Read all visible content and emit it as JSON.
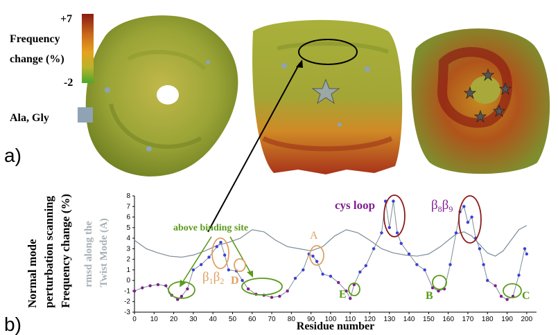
{
  "panel_a": {
    "label": "a)",
    "colorbar": {
      "max_label": "+7",
      "min_label": "-2",
      "title_line1": "Frequency",
      "title_line2": "change (%)",
      "gradient": [
        "#8b1a12",
        "#c96a1a",
        "#e6a21f",
        "#b9b22a",
        "#4aa82a"
      ],
      "ala_gly_label": "Ala, Gly",
      "ala_gly_color": "#8fa3b5"
    }
  },
  "panel_b": {
    "label": "b)",
    "ylabel_line1": "Normal mode",
    "ylabel_line2": "perturbation scanning",
    "ylabel_line3": "Frequency change (%)",
    "y2label_line1": "rmsd along the",
    "y2label_line2": "Twist Mode (A)",
    "annotations": {
      "above_binding_site": "above binding site",
      "cys_loop": "cys loop",
      "b8b9_b": "β",
      "b8b9_s1": "8",
      "b8b9_s2": "9",
      "b1b2_b": "β",
      "b1b2_s1": "1",
      "b1b2_s2": "2",
      "A": "A",
      "B": "B",
      "C": "C",
      "D": "D",
      "E": "E"
    },
    "colors": {
      "blue": "#3b3fd6",
      "purple": "#7f1f8f",
      "gray": "#7b8c97",
      "green": "#5a9a1a",
      "orange": "#e0a060",
      "maroon": "#8b1a1a"
    }
  },
  "chart_data": {
    "type": "line",
    "xlabel": "Residue number",
    "ylabel": "Normal mode perturbation scanning Frequency change (%)",
    "y2label": "rmsd along the Twist Mode (A)",
    "xlim": [
      0,
      205
    ],
    "ylim": [
      -3,
      8
    ],
    "xticks": [
      0,
      10,
      20,
      30,
      40,
      50,
      60,
      70,
      80,
      90,
      100,
      110,
      120,
      130,
      140,
      150,
      160,
      170,
      180,
      190,
      200
    ],
    "yticks": [
      -3,
      -2,
      -1,
      0,
      1,
      2,
      3,
      4,
      5,
      6,
      7,
      8
    ],
    "series": [
      {
        "name": "Frequency change",
        "x": [
          0,
          4,
          8,
          12,
          16,
          19,
          22,
          24,
          27,
          30,
          34,
          38,
          42,
          44,
          46,
          48,
          52,
          55,
          58,
          62,
          66,
          70,
          74,
          78,
          82,
          86,
          89,
          91,
          93,
          96,
          100,
          104,
          108,
          110,
          112,
          115,
          118,
          122,
          126,
          128,
          130,
          132,
          134,
          136,
          140,
          144,
          148,
          152,
          155,
          158,
          161,
          164,
          166,
          168,
          170,
          172,
          174,
          176,
          178,
          180,
          184,
          187,
          190,
          193,
          196,
          199,
          200
        ],
        "values": [
          -1.0,
          -0.7,
          -0.5,
          -0.4,
          -0.5,
          -1.4,
          -1.8,
          -1.5,
          -0.8,
          1.0,
          1.5,
          2.2,
          3.2,
          3.6,
          2.4,
          1.0,
          0.9,
          0.0,
          -0.8,
          -1.3,
          -1.4,
          -1.6,
          -1.5,
          -1.0,
          0.2,
          1.0,
          2.5,
          2.3,
          1.8,
          0.6,
          0.4,
          -0.2,
          -1.0,
          -1.7,
          -0.4,
          0.8,
          1.4,
          3.0,
          4.5,
          7.5,
          5.0,
          7.5,
          4.5,
          3.5,
          2.5,
          1.5,
          1.0,
          -0.7,
          -1.0,
          -0.8,
          1.5,
          4.5,
          6.5,
          7.0,
          5.5,
          6.0,
          4.0,
          3.0,
          1.5,
          0.0,
          -0.5,
          -1.5,
          -1.8,
          -1.5,
          0.5,
          3.0,
          2.5
        ]
      },
      {
        "name": "rmsd along the Twist Mode",
        "x": [
          0,
          6,
          12,
          18,
          24,
          30,
          36,
          42,
          48,
          54,
          60,
          66,
          72,
          78,
          84,
          90,
          96,
          102,
          108,
          114,
          120,
          126,
          132,
          138,
          144,
          150,
          156,
          160,
          164,
          168,
          172,
          176,
          180,
          184,
          188,
          192,
          196,
          200
        ],
        "values": [
          3.8,
          3.0,
          2.6,
          2.3,
          2.2,
          2.4,
          2.8,
          3.3,
          3.6,
          4.0,
          4.8,
          4.6,
          3.8,
          3.2,
          3.0,
          2.8,
          3.2,
          4.2,
          4.8,
          4.5,
          3.8,
          3.0,
          2.6,
          2.4,
          2.3,
          2.5,
          3.2,
          3.8,
          4.4,
          4.6,
          4.2,
          3.4,
          2.6,
          2.3,
          2.8,
          3.8,
          4.8,
          5.2
        ]
      }
    ]
  }
}
